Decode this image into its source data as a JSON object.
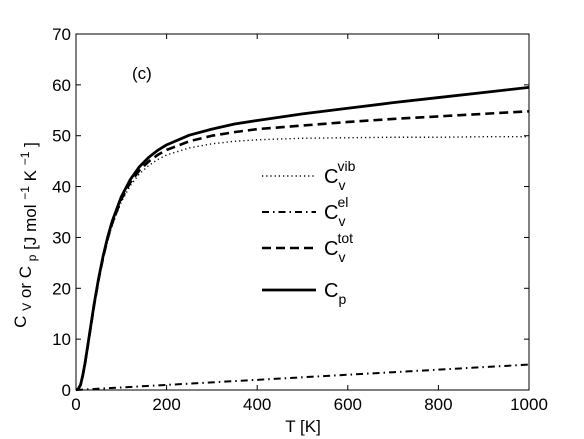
{
  "chart_data": {
    "type": "line",
    "panel_label": "(c)",
    "xlabel": "T [K]",
    "ylabel": {
      "prefix": "C",
      "v_sub": "V",
      "middle": "or",
      "p_sub": "p",
      "units_text": "[J mol",
      "exp1": "−1",
      "units_k": "K",
      "exp2": "−1",
      "close": "]"
    },
    "xlim": [
      0,
      1000
    ],
    "ylim": [
      0,
      70
    ],
    "x_ticks": [
      0,
      200,
      400,
      600,
      800,
      1000
    ],
    "y_ticks": [
      0,
      10,
      20,
      30,
      40,
      50,
      60,
      70
    ],
    "grid": false,
    "legend_position": "center-right",
    "series": [
      {
        "key": "vib",
        "legend_base": "C",
        "legend_sub": "v",
        "legend_sup": "vib",
        "style": "dotted",
        "x": [
          0,
          5,
          10,
          15,
          20,
          25,
          30,
          40,
          50,
          60,
          70,
          80,
          100,
          120,
          140,
          160,
          180,
          200,
          250,
          300,
          350,
          400,
          500,
          600,
          700,
          800,
          900,
          1000
        ],
        "y": [
          0,
          0.2,
          1.0,
          2.8,
          5.2,
          8.0,
          10.8,
          16.5,
          21.5,
          25.8,
          29.4,
          32.4,
          37.0,
          40.2,
          42.5,
          44.1,
          45.3,
          46.2,
          47.6,
          48.4,
          48.9,
          49.2,
          49.5,
          49.6,
          49.7,
          49.7,
          49.8,
          49.8
        ]
      },
      {
        "key": "el",
        "legend_base": "C",
        "legend_sub": "v",
        "legend_sup": "el",
        "style": "dashdot",
        "x": [
          0,
          100,
          200,
          300,
          400,
          500,
          600,
          700,
          800,
          900,
          1000
        ],
        "y": [
          0,
          0.5,
          1.0,
          1.5,
          2.0,
          2.5,
          3.0,
          3.5,
          4.0,
          4.5,
          5.0
        ]
      },
      {
        "key": "tot",
        "legend_base": "C",
        "legend_sub": "v",
        "legend_sup": "tot",
        "style": "dashed",
        "x": [
          0,
          5,
          10,
          15,
          20,
          25,
          30,
          40,
          50,
          60,
          70,
          80,
          100,
          120,
          140,
          160,
          180,
          200,
          250,
          300,
          350,
          400,
          500,
          600,
          700,
          800,
          900,
          1000
        ],
        "y": [
          0,
          0.2,
          1.0,
          2.9,
          5.3,
          8.1,
          11.0,
          16.7,
          21.8,
          26.1,
          29.8,
          32.8,
          37.5,
          40.8,
          43.2,
          44.9,
          46.2,
          47.2,
          48.9,
          50.0,
          50.7,
          51.3,
          52.0,
          52.7,
          53.3,
          53.8,
          54.3,
          54.8
        ]
      },
      {
        "key": "cp",
        "legend_base": "C",
        "legend_sub": "p",
        "legend_sup": "",
        "style": "solid",
        "x": [
          0,
          5,
          10,
          15,
          20,
          25,
          30,
          40,
          50,
          60,
          70,
          80,
          100,
          120,
          140,
          160,
          180,
          200,
          250,
          300,
          350,
          400,
          500,
          600,
          700,
          800,
          900,
          1000
        ],
        "y": [
          0,
          0.2,
          1.0,
          2.9,
          5.3,
          8.2,
          11.1,
          16.9,
          22.0,
          26.4,
          30.1,
          33.2,
          38.0,
          41.4,
          43.9,
          45.7,
          47.1,
          48.2,
          50.1,
          51.3,
          52.3,
          53.0,
          54.3,
          55.4,
          56.5,
          57.5,
          58.5,
          59.5
        ]
      }
    ]
  }
}
